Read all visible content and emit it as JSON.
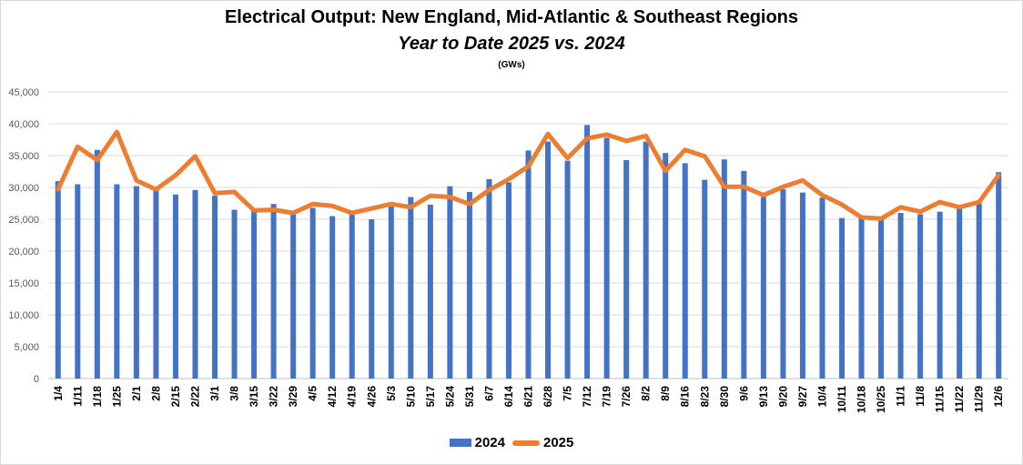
{
  "chart_data": {
    "type": "bar+line",
    "title": "Electrical Output:  New England, Mid-Atlantic & Southeast Regions",
    "subtitle": "Year to Date 2025 vs. 2024",
    "unit": "(GWs)",
    "ylim": [
      0,
      45000
    ],
    "yticks": [
      "0",
      "5,000",
      "10,000",
      "15,000",
      "20,000",
      "25,000",
      "30,000",
      "35,000",
      "40,000",
      "45,000"
    ],
    "grid": true,
    "legend_position": "bottom",
    "categories": [
      "1/4",
      "1/11",
      "1/18",
      "1/25",
      "2/1",
      "2/8",
      "2/15",
      "2/22",
      "3/1",
      "3/8",
      "3/15",
      "3/22",
      "3/29",
      "4/5",
      "4/12",
      "4/19",
      "4/26",
      "5/3",
      "5/10",
      "5/17",
      "5/24",
      "5/31",
      "6/7",
      "6/14",
      "6/21",
      "6/28",
      "7/5",
      "7/12",
      "7/19",
      "7/26",
      "8/2",
      "8/9",
      "8/16",
      "8/23",
      "8/30",
      "9/6",
      "9/13",
      "9/20",
      "9/27",
      "10/4",
      "10/11",
      "10/18",
      "10/25",
      "11/1",
      "11/8",
      "11/15",
      "11/22",
      "11/29",
      "12/6"
    ],
    "series": [
      {
        "name": "2024",
        "type": "bar",
        "color": "#4472c4",
        "values": [
          31000,
          30500,
          35900,
          30500,
          30200,
          29500,
          28900,
          29600,
          28700,
          26500,
          26300,
          27400,
          25900,
          26800,
          25500,
          25900,
          25000,
          27000,
          28500,
          27300,
          30200,
          29300,
          31300,
          30800,
          35800,
          37200,
          34200,
          39800,
          37800,
          34300,
          37200,
          35400,
          33800,
          31200,
          34400,
          32600,
          28500,
          29700,
          29200,
          28400,
          25200,
          25200,
          25000,
          26000,
          25800,
          26200,
          26700,
          27500,
          32400
        ]
      },
      {
        "name": "2025",
        "type": "line",
        "color": "#ed7d31",
        "values": [
          29700,
          36400,
          34300,
          38700,
          31100,
          29700,
          31900,
          34900,
          29100,
          29300,
          26400,
          26500,
          26000,
          27400,
          27100,
          26000,
          26700,
          27400,
          26900,
          28700,
          28500,
          27400,
          29600,
          31300,
          33300,
          38400,
          34600,
          37700,
          38300,
          37300,
          38100,
          32600,
          35900,
          34900,
          30100,
          30100,
          28800,
          30100,
          31100,
          28800,
          27300,
          25300,
          25100,
          26900,
          26200,
          27700,
          26900,
          27700,
          31900
        ]
      }
    ]
  }
}
